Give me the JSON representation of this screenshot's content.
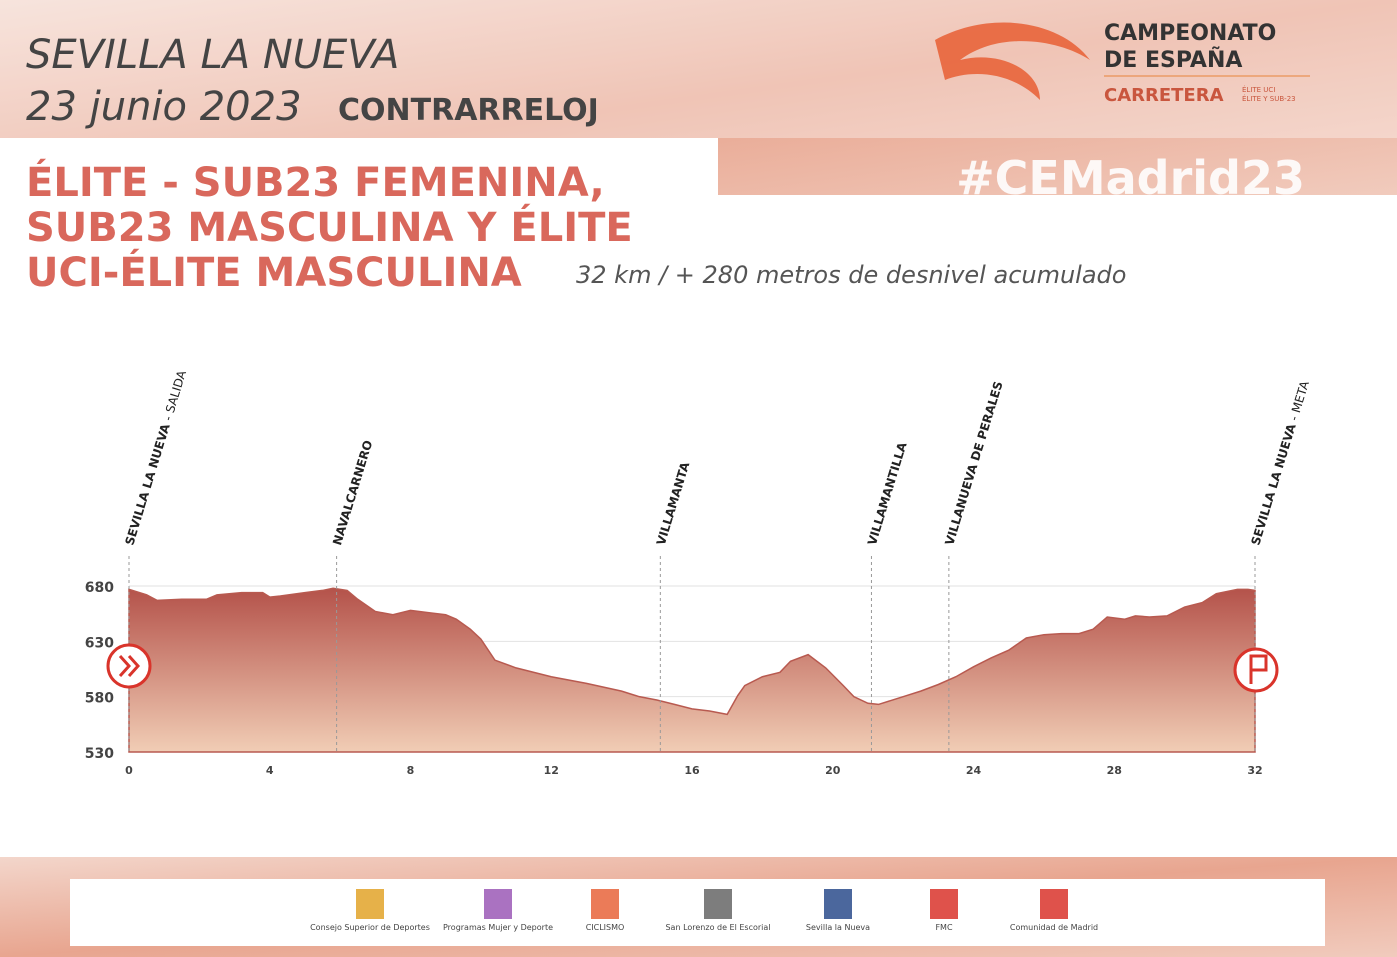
{
  "header": {
    "location": "SEVILLA LA NUEVA",
    "date": "23 junio 2023",
    "stage_type": "CONTRARRELOJ",
    "category": [
      "ÉLITE - SUB23 FEMENINA,",
      "SUB23 MASCULINA Y ÉLITE",
      "UCI-ÉLITE MASCULINA"
    ],
    "distance": "32 km / + 280 metros de desnivel acumulado",
    "logo": [
      "CAMPEONATO",
      "DE ESPAÑA",
      "CARRETERA"
    ],
    "logo_small": [
      "ÉLITE UCI",
      "ÉLITE Y SUB-23"
    ],
    "hashtag": "#CEMadrid23"
  },
  "chart_data": {
    "type": "area",
    "color": "#b85a50",
    "x": [
      0,
      0.5,
      0.8,
      1.5,
      2.2,
      2.5,
      3.2,
      3.8,
      4.0,
      4.3,
      5.0,
      5.5,
      5.8,
      6.2,
      6.5,
      7.0,
      7.5,
      8.0,
      8.5,
      9.0,
      9.3,
      9.7,
      10.0,
      10.4,
      11,
      12,
      13,
      14,
      14.5,
      15,
      15.5,
      16,
      16.5,
      17,
      17.3,
      17.5,
      18,
      18.5,
      18.8,
      19.3,
      19.8,
      20.3,
      20.6,
      21,
      21.3,
      22,
      22.5,
      23,
      23.5,
      24,
      24.5,
      25,
      25.5,
      26,
      26.5,
      27,
      27.4,
      27.8,
      28.3,
      28.6,
      29,
      29.5,
      30,
      30.5,
      30.9,
      31.5,
      31.8,
      32
    ],
    "values": [
      677,
      672,
      667,
      668,
      668,
      672,
      674,
      674,
      670,
      671,
      674,
      676,
      678,
      676,
      668,
      657,
      654,
      658,
      656,
      654,
      650,
      641,
      632,
      613,
      606,
      598,
      592,
      585,
      580,
      577,
      573,
      569,
      567,
      564,
      581,
      590,
      598,
      602,
      612,
      618,
      606,
      590,
      580,
      574,
      573,
      580,
      585,
      591,
      598,
      607,
      615,
      622,
      633,
      636,
      637,
      637,
      641,
      652,
      650,
      653,
      652,
      653,
      661,
      665,
      673,
      677,
      677,
      676
    ],
    "xlim": [
      0,
      32
    ],
    "ylim": [
      530,
      680
    ],
    "xticks": [
      0,
      4,
      8,
      12,
      16,
      20,
      24,
      28,
      32
    ],
    "yticks": [
      530,
      580,
      630,
      680
    ],
    "grid": true,
    "towns": [
      {
        "name": "SEVILLA LA NUEVA",
        "suffix": "- SALIDA",
        "x": 0
      },
      {
        "name": "NAVALCARNERO",
        "x": 5.9
      },
      {
        "name": "VILLAMANTA",
        "x": 15.1
      },
      {
        "name": "VILLAMANTILLA",
        "x": 21.1
      },
      {
        "name": "VILLANUEVA DE PERALES",
        "x": 23.3
      },
      {
        "name": "SEVILLA LA NUEVA",
        "suffix": "- META",
        "x": 32
      }
    ]
  },
  "footer": {
    "logos": [
      "Consejo Superior de Deportes",
      "Programas Mujer y Deporte",
      "CICLISMO",
      "San Lorenzo de El Escorial",
      "Sevilla la Nueva",
      "FMC",
      "Comunidad de Madrid"
    ]
  }
}
